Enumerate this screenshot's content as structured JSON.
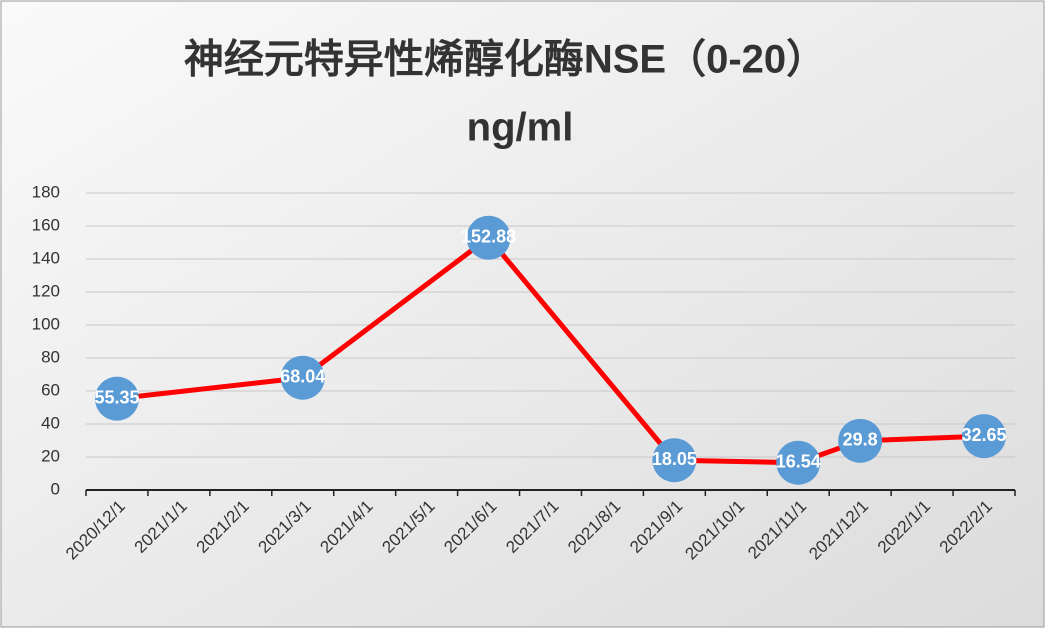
{
  "chart_data": {
    "type": "line",
    "title": [
      "神经元特异性烯醇化酶NSE（0-20）",
      "ng/ml"
    ],
    "categories": [
      "2020/12/1",
      "2021/1/1",
      "2021/2/1",
      "2021/3/1",
      "2021/4/1",
      "2021/5/1",
      "2021/6/1",
      "2021/7/1",
      "2021/8/1",
      "2021/9/1",
      "2021/10/1",
      "2021/11/1",
      "2021/12/1",
      "2022/1/1",
      "2022/2/1"
    ],
    "x": [
      "2020/12/1",
      "2021/3/1",
      "2021/6/1",
      "2021/9/1",
      "2021/11/1",
      "2021/12/1",
      "2022/2/1"
    ],
    "values": [
      55.35,
      68.04,
      152.88,
      18.05,
      16.54,
      29.8,
      32.65
    ],
    "color": "#ff0000",
    "marker_color": "#5b9bd5",
    "ylim": [
      0,
      180
    ],
    "yticks": [
      0,
      20,
      40,
      60,
      80,
      100,
      120,
      140,
      160,
      180
    ],
    "grid": true
  }
}
